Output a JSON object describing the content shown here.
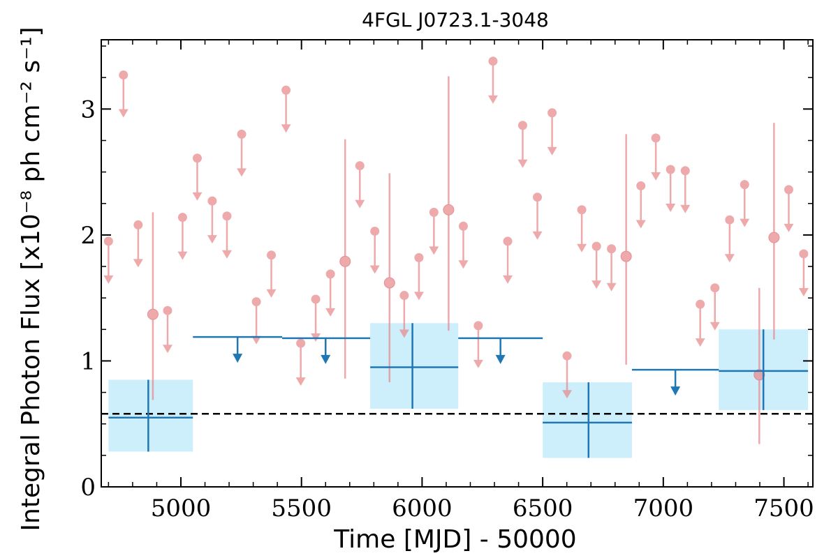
{
  "chart_data": {
    "type": "scatter",
    "title": "4FGL J0723.1-3048",
    "xlabel": "Time [MJD] - 50000",
    "ylabel": "Integral Photon Flux [x10⁻⁸ ph cm⁻² s⁻¹]",
    "xlim": [
      4670,
      7620
    ],
    "ylim": [
      0,
      3.55
    ],
    "x_ticks": [
      5000,
      5500,
      6000,
      6500,
      7000,
      7500
    ],
    "y_ticks": [
      0,
      1,
      2,
      3
    ],
    "x_tick_labels": [
      "5000",
      "5500",
      "6000",
      "6500",
      "7000",
      "7500"
    ],
    "y_tick_labels": [
      "0",
      "1",
      "2",
      "3"
    ],
    "grid": false,
    "reference_flux": 0.58,
    "colors": {
      "short_bins": "#e8898c",
      "long_bins": "#1f77b4",
      "band": "#cdeefb",
      "reference_line": "#000000"
    },
    "series": [
      {
        "kind": "short-bin upper limits",
        "points": [
          {
            "x": 4700,
            "y": 1.95
          },
          {
            "x": 4762,
            "y": 3.27
          },
          {
            "x": 4823,
            "y": 2.08
          },
          {
            "x": 4945,
            "y": 1.4
          },
          {
            "x": 5007,
            "y": 2.14
          },
          {
            "x": 5068,
            "y": 2.61
          },
          {
            "x": 5130,
            "y": 2.27
          },
          {
            "x": 5191,
            "y": 2.15
          },
          {
            "x": 5252,
            "y": 2.8
          },
          {
            "x": 5313,
            "y": 1.47
          },
          {
            "x": 5375,
            "y": 1.84
          },
          {
            "x": 5436,
            "y": 3.15
          },
          {
            "x": 5497,
            "y": 1.14
          },
          {
            "x": 5559,
            "y": 1.49
          },
          {
            "x": 5620,
            "y": 1.69
          },
          {
            "x": 5804,
            "y": 2.03
          },
          {
            "x": 5742,
            "y": 2.55
          },
          {
            "x": 5926,
            "y": 1.52
          },
          {
            "x": 5987,
            "y": 1.82
          },
          {
            "x": 6049,
            "y": 2.18
          },
          {
            "x": 6171,
            "y": 2.07
          },
          {
            "x": 6233,
            "y": 1.28
          },
          {
            "x": 6294,
            "y": 3.38
          },
          {
            "x": 6355,
            "y": 1.95
          },
          {
            "x": 6417,
            "y": 2.87
          },
          {
            "x": 6478,
            "y": 2.3
          },
          {
            "x": 6539,
            "y": 2.97
          },
          {
            "x": 6601,
            "y": 1.04
          },
          {
            "x": 6662,
            "y": 2.2
          },
          {
            "x": 6723,
            "y": 1.91
          },
          {
            "x": 6785,
            "y": 1.89
          },
          {
            "x": 6907,
            "y": 2.39
          },
          {
            "x": 6969,
            "y": 2.77
          },
          {
            "x": 7030,
            "y": 2.52
          },
          {
            "x": 7091,
            "y": 2.51
          },
          {
            "x": 7153,
            "y": 1.45
          },
          {
            "x": 7214,
            "y": 1.58
          },
          {
            "x": 7275,
            "y": 2.12
          },
          {
            "x": 7337,
            "y": 2.4
          },
          {
            "x": 7520,
            "y": 2.36
          },
          {
            "x": 7582,
            "y": 1.85
          }
        ]
      },
      {
        "kind": "short-bin detections",
        "points": [
          {
            "x": 4884,
            "y": 1.37,
            "low": 0.69,
            "high": 2.18
          },
          {
            "x": 5681,
            "y": 1.79,
            "low": 0.86,
            "high": 2.76
          },
          {
            "x": 5865,
            "y": 1.62,
            "low": 0.83,
            "high": 2.49
          },
          {
            "x": 6110,
            "y": 2.2,
            "low": 1.24,
            "high": 3.26
          },
          {
            "x": 6846,
            "y": 1.83,
            "low": 0.97,
            "high": 2.8
          },
          {
            "x": 7398,
            "y": 0.89,
            "low": 0.34,
            "high": 1.58
          },
          {
            "x": 7459,
            "y": 1.98,
            "low": 1.17,
            "high": 2.89
          }
        ]
      },
      {
        "kind": "long-bin detections",
        "points": [
          {
            "x0": 4700,
            "x1": 5050,
            "xc": 4865,
            "y": 0.55,
            "low": 0.28,
            "high": 0.85
          },
          {
            "x0": 5785,
            "x1": 6150,
            "xc": 5960,
            "y": 0.95,
            "low": 0.62,
            "high": 1.3
          },
          {
            "x0": 6500,
            "x1": 6870,
            "xc": 6690,
            "y": 0.51,
            "low": 0.23,
            "high": 0.83
          },
          {
            "x0": 7230,
            "x1": 7600,
            "xc": 7415,
            "y": 0.92,
            "low": 0.61,
            "high": 1.25
          }
        ]
      },
      {
        "kind": "long-bin upper limits",
        "points": [
          {
            "x0": 5050,
            "x1": 5420,
            "xc": 5235,
            "y": 1.19
          },
          {
            "x0": 5420,
            "x1": 5785,
            "xc": 5600,
            "y": 1.18
          },
          {
            "x0": 6150,
            "x1": 6500,
            "xc": 6325,
            "y": 1.18
          },
          {
            "x0": 6870,
            "x1": 7230,
            "xc": 7050,
            "y": 0.93
          }
        ]
      }
    ]
  }
}
